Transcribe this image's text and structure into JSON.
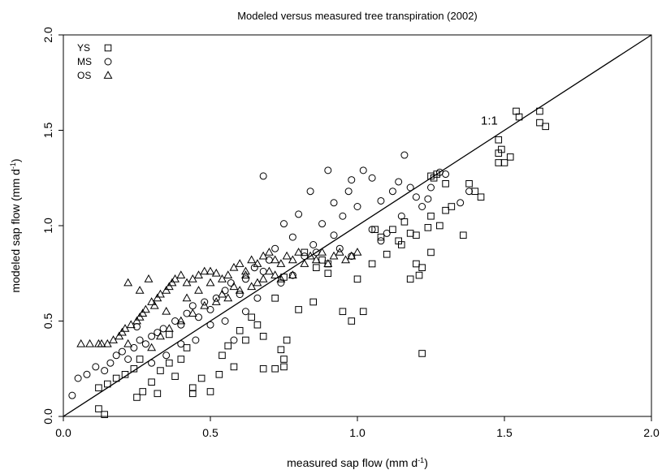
{
  "chart_data": {
    "type": "scatter",
    "title": "Modeled versus measured tree transpiration (2002)",
    "xlabel": {
      "text": "measured sap flow (mm d",
      "sup": "-1",
      "close": ")"
    },
    "ylabel": {
      "text": "modeled sap flow (mm d",
      "sup": "-1",
      "close": ")"
    },
    "xlim": [
      0,
      2
    ],
    "ylim": [
      0,
      2
    ],
    "xticks": [
      0.0,
      0.5,
      1.0,
      1.5,
      2.0
    ],
    "xtick_labels": [
      "0.0",
      "0.5",
      "1.0",
      "1.5",
      "2.0"
    ],
    "yticks": [
      0.0,
      0.5,
      1.0,
      1.5,
      2.0
    ],
    "ytick_labels": [
      "0.0",
      "0.5",
      "1.0",
      "1.5",
      "2.0"
    ],
    "grid": false,
    "legend_position": "top-left",
    "annotations": [
      {
        "text": "1:1",
        "x": 1.42,
        "y": 1.53
      }
    ],
    "reference_line": {
      "from": [
        0,
        0
      ],
      "to": [
        2,
        2
      ]
    },
    "series": [
      {
        "name": "YS",
        "marker": "square",
        "points": [
          [
            0.12,
            0.04
          ],
          [
            0.14,
            0.01
          ],
          [
            0.15,
            0.17
          ],
          [
            0.12,
            0.15
          ],
          [
            0.18,
            0.2
          ],
          [
            0.21,
            0.22
          ],
          [
            0.24,
            0.25
          ],
          [
            0.25,
            0.1
          ],
          [
            0.27,
            0.13
          ],
          [
            0.3,
            0.18
          ],
          [
            0.33,
            0.24
          ],
          [
            0.32,
            0.12
          ],
          [
            0.36,
            0.28
          ],
          [
            0.38,
            0.21
          ],
          [
            0.4,
            0.3
          ],
          [
            0.44,
            0.12
          ],
          [
            0.44,
            0.15
          ],
          [
            0.47,
            0.2
          ],
          [
            0.5,
            0.13
          ],
          [
            0.53,
            0.22
          ],
          [
            0.54,
            0.32
          ],
          [
            0.56,
            0.37
          ],
          [
            0.58,
            0.26
          ],
          [
            0.6,
            0.45
          ],
          [
            0.62,
            0.4
          ],
          [
            0.64,
            0.52
          ],
          [
            0.66,
            0.48
          ],
          [
            0.68,
            0.42
          ],
          [
            0.68,
            0.25
          ],
          [
            0.72,
            0.25
          ],
          [
            0.75,
            0.3
          ],
          [
            0.75,
            0.26
          ],
          [
            0.76,
            0.4
          ],
          [
            0.74,
            0.35
          ],
          [
            0.72,
            0.62
          ],
          [
            0.75,
            0.73
          ],
          [
            0.8,
            0.56
          ],
          [
            0.85,
            0.6
          ],
          [
            0.9,
            0.75
          ],
          [
            0.95,
            0.55
          ],
          [
            0.98,
            0.5
          ],
          [
            1.0,
            0.72
          ],
          [
            1.02,
            0.55
          ],
          [
            1.05,
            0.8
          ],
          [
            1.1,
            0.85
          ],
          [
            1.15,
            0.9
          ],
          [
            1.18,
            0.72
          ],
          [
            1.2,
            0.95
          ],
          [
            1.22,
            0.78
          ],
          [
            1.21,
            0.74
          ],
          [
            1.22,
            0.33
          ],
          [
            1.25,
            1.05
          ],
          [
            1.28,
            1.0
          ],
          [
            1.3,
            1.08
          ],
          [
            1.32,
            1.1
          ],
          [
            1.36,
            0.95
          ],
          [
            1.4,
            1.18
          ],
          [
            1.42,
            1.15
          ],
          [
            1.38,
            1.22
          ],
          [
            1.25,
            0.86
          ],
          [
            1.2,
            0.8
          ],
          [
            1.48,
            1.33
          ],
          [
            1.5,
            1.33
          ],
          [
            1.48,
            1.38
          ],
          [
            1.52,
            1.36
          ],
          [
            1.49,
            1.4
          ],
          [
            1.48,
            1.45
          ],
          [
            1.54,
            1.6
          ],
          [
            1.55,
            1.57
          ],
          [
            1.62,
            1.6
          ],
          [
            1.62,
            1.54
          ],
          [
            1.64,
            1.52
          ],
          [
            1.25,
            1.26
          ],
          [
            1.27,
            1.27
          ],
          [
            1.3,
            1.22
          ],
          [
            1.26,
            1.25
          ],
          [
            0.9,
            0.8
          ],
          [
            0.88,
            0.82
          ],
          [
            0.82,
            0.86
          ],
          [
            0.86,
            0.78
          ],
          [
            1.08,
            0.94
          ],
          [
            1.12,
            0.98
          ],
          [
            1.14,
            0.92
          ],
          [
            1.18,
            0.96
          ],
          [
            1.24,
            0.99
          ],
          [
            1.06,
            0.98
          ],
          [
            1.16,
            1.02
          ],
          [
            0.36,
            0.43
          ],
          [
            0.42,
            0.36
          ],
          [
            0.26,
            0.3
          ]
        ]
      },
      {
        "name": "MS",
        "marker": "circle",
        "points": [
          [
            0.03,
            0.11
          ],
          [
            0.05,
            0.2
          ],
          [
            0.08,
            0.22
          ],
          [
            0.11,
            0.26
          ],
          [
            0.14,
            0.24
          ],
          [
            0.16,
            0.28
          ],
          [
            0.18,
            0.32
          ],
          [
            0.2,
            0.34
          ],
          [
            0.22,
            0.3
          ],
          [
            0.24,
            0.36
          ],
          [
            0.26,
            0.4
          ],
          [
            0.28,
            0.38
          ],
          [
            0.3,
            0.42
          ],
          [
            0.32,
            0.44
          ],
          [
            0.34,
            0.46
          ],
          [
            0.38,
            0.5
          ],
          [
            0.4,
            0.48
          ],
          [
            0.42,
            0.54
          ],
          [
            0.44,
            0.58
          ],
          [
            0.46,
            0.52
          ],
          [
            0.48,
            0.6
          ],
          [
            0.5,
            0.56
          ],
          [
            0.52,
            0.62
          ],
          [
            0.55,
            0.66
          ],
          [
            0.57,
            0.7
          ],
          [
            0.6,
            0.64
          ],
          [
            0.62,
            0.72
          ],
          [
            0.65,
            0.78
          ],
          [
            0.68,
            0.76
          ],
          [
            0.7,
            0.82
          ],
          [
            0.72,
            0.88
          ],
          [
            0.68,
            1.26
          ],
          [
            0.75,
            1.01
          ],
          [
            0.78,
            0.94
          ],
          [
            0.8,
            1.06
          ],
          [
            0.84,
            1.18
          ],
          [
            0.88,
            1.01
          ],
          [
            0.92,
            1.12
          ],
          [
            0.95,
            1.05
          ],
          [
            0.97,
            1.18
          ],
          [
            0.98,
            1.24
          ],
          [
            1.0,
            1.1
          ],
          [
            1.02,
            1.29
          ],
          [
            1.05,
            1.25
          ],
          [
            1.08,
            1.13
          ],
          [
            1.12,
            1.18
          ],
          [
            1.14,
            1.23
          ],
          [
            1.16,
            1.37
          ],
          [
            1.18,
            1.2
          ],
          [
            1.2,
            1.15
          ],
          [
            1.22,
            1.1
          ],
          [
            1.25,
            1.2
          ],
          [
            1.28,
            1.28
          ],
          [
            1.3,
            1.27
          ],
          [
            1.35,
            1.12
          ],
          [
            1.38,
            1.18
          ],
          [
            0.9,
            1.29
          ],
          [
            0.85,
            0.9
          ],
          [
            0.92,
            0.95
          ],
          [
            1.05,
            0.98
          ],
          [
            1.08,
            0.92
          ],
          [
            1.1,
            0.96
          ],
          [
            0.58,
            0.4
          ],
          [
            0.62,
            0.55
          ],
          [
            0.66,
            0.62
          ],
          [
            0.35,
            0.32
          ],
          [
            0.3,
            0.28
          ],
          [
            0.25,
            0.47
          ],
          [
            0.82,
            0.84
          ],
          [
            0.86,
            0.86
          ],
          [
            0.78,
            0.74
          ],
          [
            0.74,
            0.7
          ],
          [
            0.94,
            0.88
          ],
          [
            0.98,
            0.84
          ],
          [
            1.15,
            1.05
          ],
          [
            1.24,
            1.14
          ],
          [
            0.45,
            0.4
          ],
          [
            0.4,
            0.38
          ],
          [
            0.5,
            0.48
          ],
          [
            0.55,
            0.5
          ]
        ]
      },
      {
        "name": "OS",
        "marker": "triangle",
        "points": [
          [
            0.06,
            0.38
          ],
          [
            0.09,
            0.38
          ],
          [
            0.12,
            0.38
          ],
          [
            0.13,
            0.38
          ],
          [
            0.15,
            0.38
          ],
          [
            0.17,
            0.4
          ],
          [
            0.19,
            0.42
          ],
          [
            0.2,
            0.44
          ],
          [
            0.21,
            0.46
          ],
          [
            0.22,
            0.38
          ],
          [
            0.23,
            0.48
          ],
          [
            0.25,
            0.5
          ],
          [
            0.26,
            0.52
          ],
          [
            0.27,
            0.54
          ],
          [
            0.28,
            0.56
          ],
          [
            0.3,
            0.6
          ],
          [
            0.31,
            0.58
          ],
          [
            0.32,
            0.62
          ],
          [
            0.33,
            0.64
          ],
          [
            0.35,
            0.66
          ],
          [
            0.36,
            0.68
          ],
          [
            0.37,
            0.7
          ],
          [
            0.38,
            0.72
          ],
          [
            0.4,
            0.74
          ],
          [
            0.42,
            0.7
          ],
          [
            0.44,
            0.72
          ],
          [
            0.46,
            0.74
          ],
          [
            0.48,
            0.76
          ],
          [
            0.5,
            0.76
          ],
          [
            0.52,
            0.75
          ],
          [
            0.54,
            0.72
          ],
          [
            0.56,
            0.74
          ],
          [
            0.58,
            0.78
          ],
          [
            0.6,
            0.8
          ],
          [
            0.62,
            0.76
          ],
          [
            0.64,
            0.82
          ],
          [
            0.66,
            0.8
          ],
          [
            0.68,
            0.84
          ],
          [
            0.7,
            0.86
          ],
          [
            0.72,
            0.82
          ],
          [
            0.74,
            0.8
          ],
          [
            0.76,
            0.84
          ],
          [
            0.78,
            0.82
          ],
          [
            0.8,
            0.86
          ],
          [
            0.82,
            0.8
          ],
          [
            0.84,
            0.84
          ],
          [
            0.86,
            0.82
          ],
          [
            0.88,
            0.86
          ],
          [
            0.9,
            0.8
          ],
          [
            0.92,
            0.84
          ],
          [
            0.94,
            0.86
          ],
          [
            0.96,
            0.82
          ],
          [
            0.98,
            0.84
          ],
          [
            1.0,
            0.86
          ],
          [
            0.3,
            0.36
          ],
          [
            0.33,
            0.42
          ],
          [
            0.36,
            0.46
          ],
          [
            0.4,
            0.5
          ],
          [
            0.44,
            0.54
          ],
          [
            0.48,
            0.58
          ],
          [
            0.52,
            0.6
          ],
          [
            0.56,
            0.62
          ],
          [
            0.6,
            0.66
          ],
          [
            0.64,
            0.68
          ],
          [
            0.68,
            0.72
          ],
          [
            0.72,
            0.74
          ],
          [
            0.26,
            0.66
          ],
          [
            0.22,
            0.7
          ],
          [
            0.29,
            0.72
          ],
          [
            0.35,
            0.55
          ],
          [
            0.42,
            0.62
          ],
          [
            0.46,
            0.66
          ],
          [
            0.5,
            0.7
          ],
          [
            0.54,
            0.64
          ],
          [
            0.58,
            0.68
          ],
          [
            0.62,
            0.74
          ],
          [
            0.66,
            0.7
          ],
          [
            0.7,
            0.76
          ],
          [
            0.74,
            0.72
          ],
          [
            0.78,
            0.74
          ]
        ]
      }
    ]
  }
}
